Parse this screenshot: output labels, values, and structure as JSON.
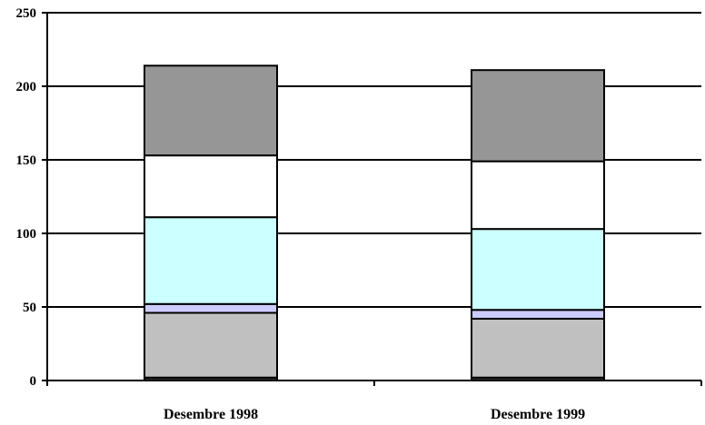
{
  "chart_data": {
    "type": "bar",
    "stacked": true,
    "categories": [
      "Desembre 1998",
      "Desembre 1999"
    ],
    "series": [
      {
        "values": [
          2,
          2
        ],
        "color": "#333333"
      },
      {
        "values": [
          44,
          40
        ],
        "color": "#c0c0c0"
      },
      {
        "values": [
          6,
          6
        ],
        "color": "#ccccff"
      },
      {
        "values": [
          59,
          55
        ],
        "color": "#ccffff"
      },
      {
        "values": [
          42,
          46
        ],
        "color": "#ffffff"
      },
      {
        "values": [
          61,
          62
        ],
        "color": "#969696"
      }
    ],
    "yticks": [
      "0",
      "50",
      "100",
      "150",
      "200",
      "250"
    ],
    "ylim": [
      0,
      250
    ],
    "grid": true,
    "legend": "none"
  }
}
